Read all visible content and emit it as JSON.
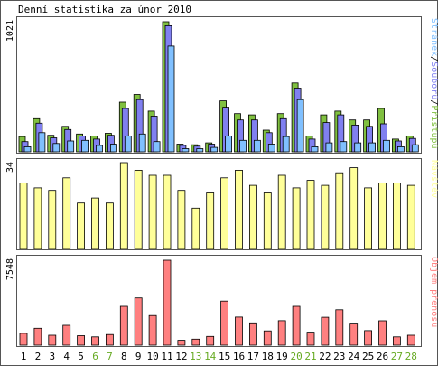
{
  "title": "Denní statistika za únor 2010",
  "colors": {
    "border": "#555555",
    "hits": "#80c040",
    "files": "#8080f0",
    "pages": "#80c0ff",
    "visits": "#ffff99",
    "kbytes": "#ff8080",
    "stroke": "#000000",
    "weekday_label": "#000000",
    "weekend_label": "#66aa22"
  },
  "chart_data": [
    {
      "type": "bar",
      "panel": "top",
      "ymax_label": "1021",
      "legend": [
        "Stránek",
        "Souborů",
        "Přístupů"
      ],
      "legend_colors": [
        "#80c0ff",
        "#8080f0",
        "#80c040"
      ],
      "ylim": [
        0,
        1021
      ],
      "categories": [
        "1",
        "2",
        "3",
        "4",
        "5",
        "6",
        "7",
        "8",
        "9",
        "10",
        "11",
        "12",
        "13",
        "14",
        "15",
        "16",
        "17",
        "18",
        "19",
        "20",
        "21",
        "22",
        "23",
        "24",
        "25",
        "26",
        "27",
        "28"
      ],
      "series": [
        {
          "name": "Přístupů",
          "values": [
            120,
            260,
            130,
            200,
            140,
            125,
            145,
            390,
            450,
            320,
            1021,
            60,
            55,
            70,
            400,
            300,
            290,
            170,
            300,
            540,
            125,
            290,
            320,
            250,
            250,
            340,
            100,
            125
          ]
        },
        {
          "name": "Souborů",
          "values": [
            80,
            225,
            110,
            175,
            125,
            100,
            130,
            340,
            410,
            280,
            990,
            50,
            45,
            60,
            350,
            250,
            250,
            150,
            260,
            500,
            100,
            230,
            290,
            210,
            200,
            220,
            85,
            105
          ]
        },
        {
          "name": "Stránek",
          "values": [
            40,
            150,
            65,
            85,
            90,
            50,
            60,
            125,
            140,
            80,
            830,
            25,
            25,
            35,
            125,
            90,
            90,
            60,
            120,
            410,
            40,
            70,
            80,
            70,
            70,
            90,
            40,
            55
          ]
        }
      ]
    },
    {
      "type": "bar",
      "panel": "middle",
      "ymax_label": "34",
      "legend": [
        "Návštěv"
      ],
      "legend_colors": [
        "#ffff99"
      ],
      "ylim": [
        0,
        34
      ],
      "categories": [
        "1",
        "2",
        "3",
        "4",
        "5",
        "6",
        "7",
        "8",
        "9",
        "10",
        "11",
        "12",
        "13",
        "14",
        "15",
        "16",
        "17",
        "18",
        "19",
        "20",
        "21",
        "22",
        "23",
        "24",
        "25",
        "26",
        "27",
        "28"
      ],
      "values": [
        26,
        24,
        23,
        28,
        18,
        20,
        18,
        34,
        31,
        29,
        29,
        23,
        16,
        22,
        28,
        31,
        25,
        22,
        29,
        24,
        27,
        25,
        30,
        32,
        24,
        26,
        26,
        25
      ]
    },
    {
      "type": "bar",
      "panel": "bottom",
      "ymax_label": "7548",
      "legend": [
        "Objem přenosu"
      ],
      "legend_colors": [
        "#ff8080"
      ],
      "ylim": [
        0,
        7548
      ],
      "categories": [
        "1",
        "2",
        "3",
        "4",
        "5",
        "6",
        "7",
        "8",
        "9",
        "10",
        "11",
        "12",
        "13",
        "14",
        "15",
        "16",
        "17",
        "18",
        "19",
        "20",
        "21",
        "22",
        "23",
        "24",
        "25",
        "26",
        "27",
        "28"
      ],
      "values": [
        1050,
        1500,
        880,
        1770,
        840,
        740,
        950,
        3450,
        4200,
        2630,
        7548,
        430,
        540,
        780,
        3920,
        2500,
        1980,
        1270,
        2180,
        3450,
        1160,
        2480,
        3150,
        1960,
        1290,
        2170,
        740,
        880
      ]
    }
  ],
  "day_labels": [
    "1",
    "2",
    "3",
    "4",
    "5",
    "6",
    "7",
    "8",
    "9",
    "10",
    "11",
    "12",
    "13",
    "14",
    "15",
    "16",
    "17",
    "18",
    "19",
    "20",
    "21",
    "22",
    "23",
    "24",
    "25",
    "26",
    "27",
    "28"
  ],
  "weekend_days": [
    6,
    7,
    13,
    14,
    20,
    21,
    27,
    28
  ]
}
